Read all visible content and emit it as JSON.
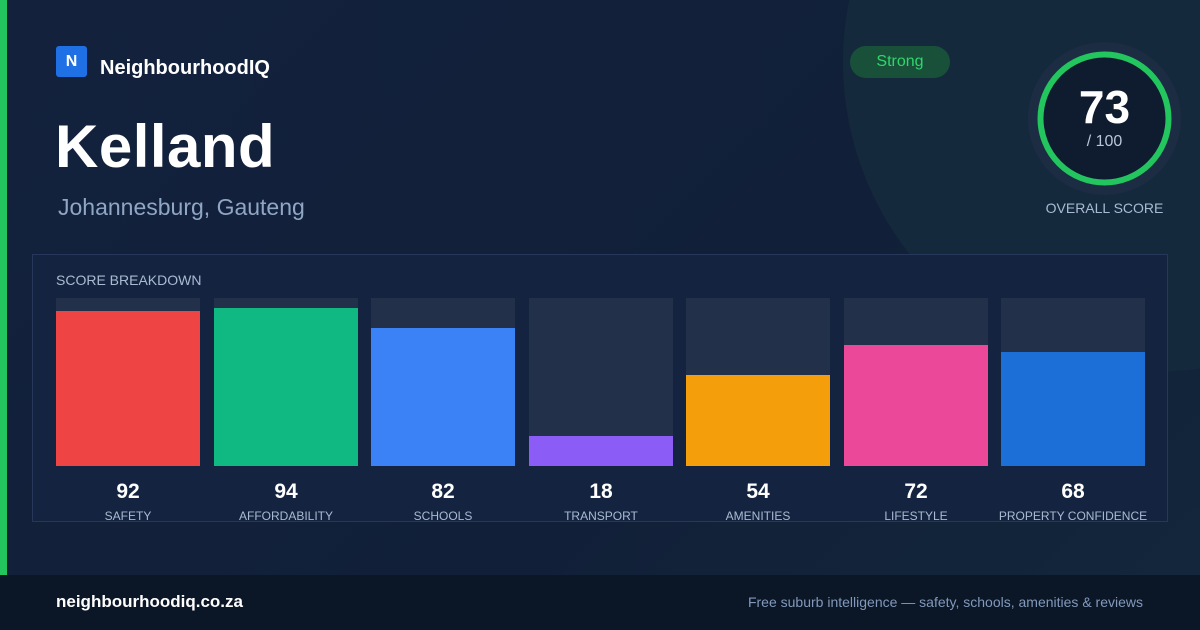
{
  "header": {
    "logo_letter": "N",
    "brand_name": "NeighbourhoodIQ",
    "suburb": "Kelland",
    "location": "Johannesburg, Gauteng",
    "rating_badge": "Strong"
  },
  "overall": {
    "score": "73",
    "max_text": "/ 100",
    "score_value": 73,
    "max_value": 100,
    "label": "OVERALL SCORE"
  },
  "breakdown": {
    "title": "SCORE BREAKDOWN"
  },
  "chart_data": {
    "type": "bar",
    "title": "SCORE BREAKDOWN",
    "categories": [
      "SAFETY",
      "AFFORDABILITY",
      "SCHOOLS",
      "TRANSPORT",
      "AMENITIES",
      "LIFESTYLE",
      "PROPERTY CONFIDENCE"
    ],
    "values": [
      92,
      94,
      82,
      18,
      54,
      72,
      68
    ],
    "ylim": [
      0,
      100
    ],
    "colors": [
      "#ef4444",
      "#10b981",
      "#3b82f6",
      "#8b5cf6",
      "#f59e0b",
      "#ec4899",
      "#1d6fd8"
    ],
    "track_color": "#223049",
    "grid": false
  },
  "footer": {
    "url": "neighbourhoodiq.co.za",
    "tagline": "Free suburb intelligence — safety, schools, amenities & reviews"
  },
  "colors": {
    "accent": "#22c55e",
    "brand": "#1f6fe5",
    "background": "#13213d"
  }
}
